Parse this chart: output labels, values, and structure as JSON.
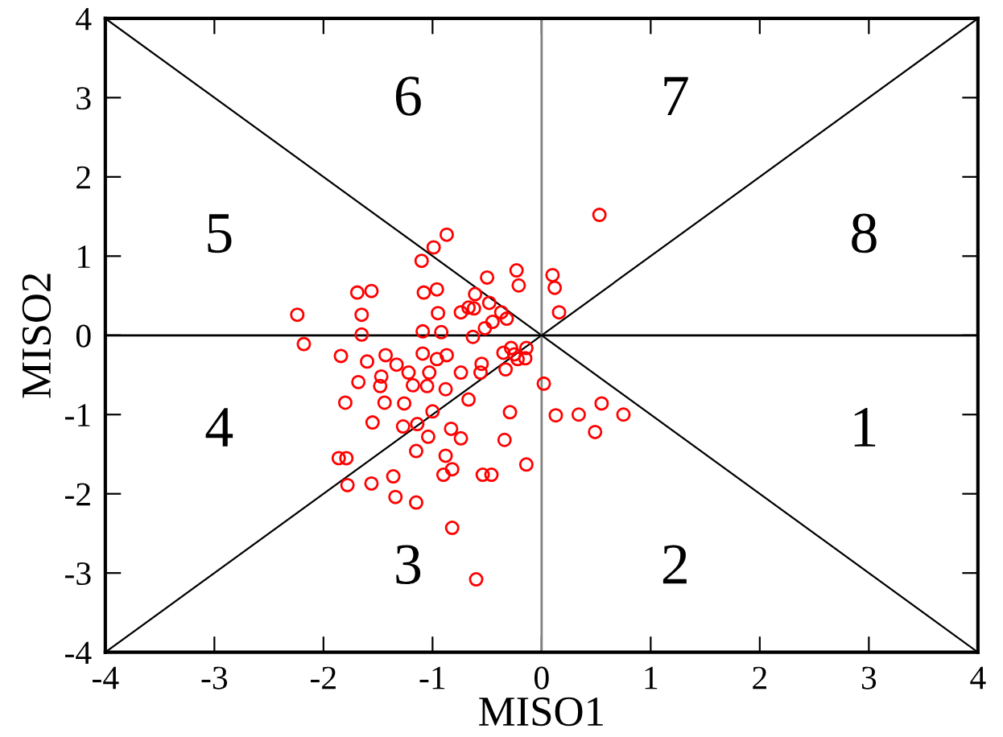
{
  "chart_data": {
    "type": "scatter",
    "xlabel": "MISO1",
    "ylabel": "MISO2",
    "xlim": [
      -4,
      4
    ],
    "ylim": [
      -4,
      4
    ],
    "xticks": [
      -4,
      -3,
      -2,
      -1,
      0,
      1,
      2,
      3,
      4
    ],
    "yticks": [
      -4,
      -3,
      -2,
      -1,
      0,
      1,
      2,
      3,
      4
    ],
    "grid": false,
    "legend": false,
    "marker": "circle",
    "series": [
      {
        "color": "#ff0000",
        "x": [
          0.53,
          -0.87,
          -0.99,
          -1.1,
          -0.5,
          -0.23,
          -0.21,
          0.1,
          0.12,
          0.16,
          -1.69,
          -1.56,
          -1.08,
          -0.96,
          -0.61,
          -0.62,
          -0.74,
          -0.67,
          -0.95,
          -1.65,
          -1.65,
          -2.24,
          -2.18,
          -1.09,
          -0.92,
          -0.63,
          -0.52,
          -0.45,
          -0.37,
          -0.32,
          -0.48,
          -1.84,
          -1.6,
          -1.43,
          -1.33,
          -1.47,
          -1.48,
          -1.68,
          -1.8,
          -1.44,
          -1.26,
          -1.22,
          -1.09,
          -0.96,
          -0.87,
          -1.03,
          -1.05,
          -1.18,
          -0.88,
          -1.0,
          -0.74,
          -0.55,
          -0.56,
          -0.67,
          -0.35,
          -0.28,
          -0.25,
          -0.22,
          -0.15,
          -0.14,
          -0.33,
          0.02,
          -0.29,
          0.13,
          0.34,
          0.55,
          0.75,
          0.49,
          -1.55,
          -1.27,
          -1.14,
          -1.04,
          -0.83,
          -0.74,
          -0.34,
          -1.15,
          -1.86,
          -1.79,
          -1.78,
          -1.56,
          -1.36,
          -1.34,
          -1.15,
          -0.88,
          -0.9,
          -0.82,
          -0.54,
          -0.46,
          -0.14,
          -0.82,
          -0.6
        ],
        "values": [
          1.52,
          1.27,
          1.11,
          0.94,
          0.73,
          0.82,
          0.63,
          0.76,
          0.6,
          0.29,
          0.54,
          0.56,
          0.54,
          0.58,
          0.52,
          0.34,
          0.29,
          0.35,
          0.28,
          0.26,
          0.01,
          0.26,
          -0.11,
          0.05,
          0.04,
          -0.02,
          0.09,
          0.17,
          0.29,
          0.21,
          0.41,
          -0.26,
          -0.33,
          -0.25,
          -0.37,
          -0.52,
          -0.64,
          -0.59,
          -0.85,
          -0.85,
          -0.86,
          -0.47,
          -0.23,
          -0.3,
          -0.25,
          -0.47,
          -0.64,
          -0.63,
          -0.68,
          -0.96,
          -0.47,
          -0.36,
          -0.47,
          -0.81,
          -0.22,
          -0.16,
          -0.24,
          -0.3,
          -0.29,
          -0.16,
          -0.43,
          -0.61,
          -0.97,
          -1.01,
          -1.0,
          -0.86,
          -1.0,
          -1.22,
          -1.1,
          -1.15,
          -1.12,
          -1.28,
          -1.18,
          -1.3,
          -1.32,
          -1.46,
          -1.55,
          -1.55,
          -1.89,
          -1.87,
          -1.78,
          -2.04,
          -2.11,
          -1.52,
          -1.76,
          -1.69,
          -1.76,
          -1.76,
          -1.63,
          -2.43,
          -3.08
        ]
      },
      {
        "type": "line",
        "color": "#000000",
        "marker": "none",
        "x": [
          -4,
          4
        ],
        "values": [
          4,
          -4
        ]
      },
      {
        "type": "line",
        "color": "#000000",
        "marker": "none",
        "x": [
          -4,
          4
        ],
        "values": [
          -4,
          4
        ]
      }
    ],
    "ref_lines": [
      {
        "axis": "x",
        "value": 0,
        "color": "#808080"
      },
      {
        "axis": "y",
        "value": 0,
        "color": "#000000"
      }
    ],
    "annotations": [
      "1",
      "2",
      "3",
      "4",
      "5",
      "6",
      "7",
      "8"
    ]
  }
}
